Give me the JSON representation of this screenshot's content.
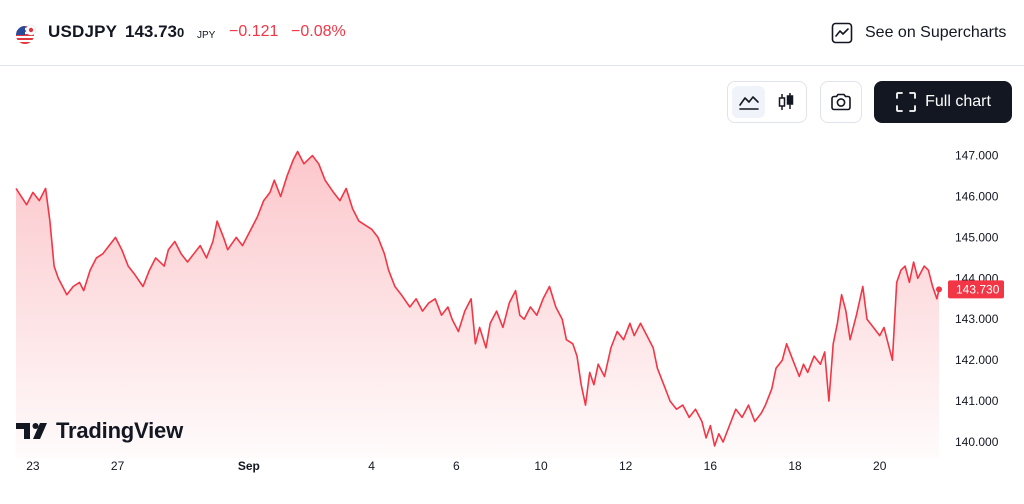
{
  "header": {
    "symbol": "USDJPY",
    "price_main": "143.73",
    "price_tail": "0",
    "currency": "JPY",
    "change": "−0.121",
    "change_pct": "−0.08%",
    "supercharts_label": "See on Supercharts"
  },
  "toolbar": {
    "full_chart_label": "Full chart",
    "chart_type_active": "area"
  },
  "brand": {
    "logo_text": "TradingView"
  },
  "colors": {
    "line": "#f23645",
    "fill_top": "#f23645",
    "text": "#131722",
    "border": "#e0e3eb"
  },
  "chart_data": {
    "type": "area",
    "symbol": "USDJPY",
    "y_ticks": [
      "140.000",
      "141.000",
      "142.000",
      "143.000",
      "144.000",
      "145.000",
      "146.000",
      "147.000"
    ],
    "ylim": [
      139.7,
      147.4
    ],
    "x_ticks": [
      {
        "label": "23",
        "t": 0.4,
        "bold": false
      },
      {
        "label": "27",
        "t": 2.4,
        "bold": false
      },
      {
        "label": "Sep",
        "t": 5.5,
        "bold": true
      },
      {
        "label": "4",
        "t": 8.4,
        "bold": false
      },
      {
        "label": "6",
        "t": 10.4,
        "bold": false
      },
      {
        "label": "10",
        "t": 12.4,
        "bold": false
      },
      {
        "label": "12",
        "t": 14.4,
        "bold": false
      },
      {
        "label": "16",
        "t": 16.4,
        "bold": false
      },
      {
        "label": "18",
        "t": 18.4,
        "bold": false
      },
      {
        "label": "20",
        "t": 20.4,
        "bold": false
      }
    ],
    "last_price_label": "143.730",
    "last_price": 143.73,
    "series": [
      {
        "values": [
          [
            0.0,
            146.2
          ],
          [
            0.25,
            145.8
          ],
          [
            0.4,
            146.1
          ],
          [
            0.55,
            145.9
          ],
          [
            0.7,
            146.2
          ],
          [
            0.8,
            145.4
          ],
          [
            0.9,
            144.3
          ],
          [
            1.0,
            144.0
          ],
          [
            1.1,
            143.8
          ],
          [
            1.2,
            143.6
          ],
          [
            1.35,
            143.8
          ],
          [
            1.5,
            143.9
          ],
          [
            1.6,
            143.7
          ],
          [
            1.75,
            144.2
          ],
          [
            1.9,
            144.5
          ],
          [
            2.05,
            144.6
          ],
          [
            2.2,
            144.8
          ],
          [
            2.35,
            145.0
          ],
          [
            2.5,
            144.7
          ],
          [
            2.65,
            144.3
          ],
          [
            2.8,
            144.1
          ],
          [
            3.0,
            143.8
          ],
          [
            3.15,
            144.2
          ],
          [
            3.3,
            144.5
          ],
          [
            3.5,
            144.3
          ],
          [
            3.6,
            144.7
          ],
          [
            3.75,
            144.9
          ],
          [
            3.9,
            144.6
          ],
          [
            4.05,
            144.4
          ],
          [
            4.2,
            144.6
          ],
          [
            4.35,
            144.8
          ],
          [
            4.5,
            144.5
          ],
          [
            4.65,
            144.9
          ],
          [
            4.75,
            145.4
          ],
          [
            4.9,
            145.0
          ],
          [
            5.0,
            144.7
          ],
          [
            5.2,
            145.0
          ],
          [
            5.35,
            144.8
          ],
          [
            5.5,
            145.1
          ],
          [
            5.7,
            145.5
          ],
          [
            5.85,
            145.9
          ],
          [
            6.0,
            146.1
          ],
          [
            6.1,
            146.4
          ],
          [
            6.25,
            146.0
          ],
          [
            6.4,
            146.5
          ],
          [
            6.55,
            146.9
          ],
          [
            6.65,
            147.1
          ],
          [
            6.8,
            146.8
          ],
          [
            7.0,
            147.0
          ],
          [
            7.15,
            146.8
          ],
          [
            7.3,
            146.4
          ],
          [
            7.5,
            146.1
          ],
          [
            7.65,
            145.9
          ],
          [
            7.8,
            146.2
          ],
          [
            7.95,
            145.7
          ],
          [
            8.1,
            145.4
          ],
          [
            8.25,
            145.3
          ],
          [
            8.4,
            145.2
          ],
          [
            8.55,
            145.0
          ],
          [
            8.7,
            144.6
          ],
          [
            8.8,
            144.2
          ],
          [
            8.95,
            143.8
          ],
          [
            9.1,
            143.6
          ],
          [
            9.3,
            143.3
          ],
          [
            9.45,
            143.5
          ],
          [
            9.6,
            143.2
          ],
          [
            9.75,
            143.4
          ],
          [
            9.9,
            143.5
          ],
          [
            10.05,
            143.1
          ],
          [
            10.2,
            143.3
          ],
          [
            10.3,
            143.0
          ],
          [
            10.45,
            142.7
          ],
          [
            10.6,
            143.2
          ],
          [
            10.75,
            143.5
          ],
          [
            10.85,
            142.4
          ],
          [
            10.95,
            142.8
          ],
          [
            11.1,
            142.3
          ],
          [
            11.2,
            142.9
          ],
          [
            11.35,
            143.2
          ],
          [
            11.5,
            142.8
          ],
          [
            11.65,
            143.4
          ],
          [
            11.8,
            143.7
          ],
          [
            11.9,
            143.1
          ],
          [
            12.0,
            143.0
          ],
          [
            12.15,
            143.3
          ],
          [
            12.3,
            143.1
          ],
          [
            12.45,
            143.5
          ],
          [
            12.6,
            143.8
          ],
          [
            12.75,
            143.3
          ],
          [
            12.9,
            143.0
          ],
          [
            13.0,
            142.5
          ],
          [
            13.15,
            142.4
          ],
          [
            13.25,
            142.1
          ],
          [
            13.35,
            141.4
          ],
          [
            13.45,
            140.9
          ],
          [
            13.55,
            141.7
          ],
          [
            13.65,
            141.4
          ],
          [
            13.75,
            141.9
          ],
          [
            13.9,
            141.6
          ],
          [
            14.05,
            142.3
          ],
          [
            14.2,
            142.7
          ],
          [
            14.35,
            142.5
          ],
          [
            14.5,
            142.9
          ],
          [
            14.6,
            142.6
          ],
          [
            14.75,
            142.9
          ],
          [
            14.9,
            142.6
          ],
          [
            15.05,
            142.3
          ],
          [
            15.15,
            141.8
          ],
          [
            15.3,
            141.4
          ],
          [
            15.45,
            141.0
          ],
          [
            15.6,
            140.8
          ],
          [
            15.75,
            140.9
          ],
          [
            15.9,
            140.6
          ],
          [
            16.05,
            140.8
          ],
          [
            16.2,
            140.5
          ],
          [
            16.3,
            140.1
          ],
          [
            16.4,
            140.4
          ],
          [
            16.5,
            139.9
          ],
          [
            16.6,
            140.2
          ],
          [
            16.7,
            140.0
          ],
          [
            16.85,
            140.4
          ],
          [
            17.0,
            140.8
          ],
          [
            17.15,
            140.6
          ],
          [
            17.3,
            140.9
          ],
          [
            17.45,
            140.5
          ],
          [
            17.6,
            140.7
          ],
          [
            17.7,
            140.9
          ],
          [
            17.85,
            141.3
          ],
          [
            17.95,
            141.8
          ],
          [
            18.1,
            142.0
          ],
          [
            18.2,
            142.4
          ],
          [
            18.35,
            142.0
          ],
          [
            18.5,
            141.6
          ],
          [
            18.6,
            141.9
          ],
          [
            18.7,
            141.7
          ],
          [
            18.85,
            142.1
          ],
          [
            19.0,
            141.9
          ],
          [
            19.1,
            142.2
          ],
          [
            19.2,
            141.0
          ],
          [
            19.3,
            142.4
          ],
          [
            19.4,
            142.9
          ],
          [
            19.5,
            143.6
          ],
          [
            19.6,
            143.2
          ],
          [
            19.7,
            142.5
          ],
          [
            19.85,
            143.1
          ],
          [
            20.0,
            143.8
          ],
          [
            20.1,
            143.0
          ],
          [
            20.25,
            142.8
          ],
          [
            20.4,
            142.6
          ],
          [
            20.5,
            142.8
          ],
          [
            20.6,
            142.4
          ],
          [
            20.7,
            142.0
          ],
          [
            20.8,
            143.9
          ],
          [
            20.9,
            144.2
          ],
          [
            21.0,
            144.3
          ],
          [
            21.1,
            143.9
          ],
          [
            21.2,
            144.4
          ],
          [
            21.3,
            144.0
          ],
          [
            21.45,
            144.3
          ],
          [
            21.55,
            144.2
          ],
          [
            21.65,
            143.8
          ],
          [
            21.75,
            143.5
          ],
          [
            21.8,
            143.73
          ]
        ]
      }
    ]
  }
}
